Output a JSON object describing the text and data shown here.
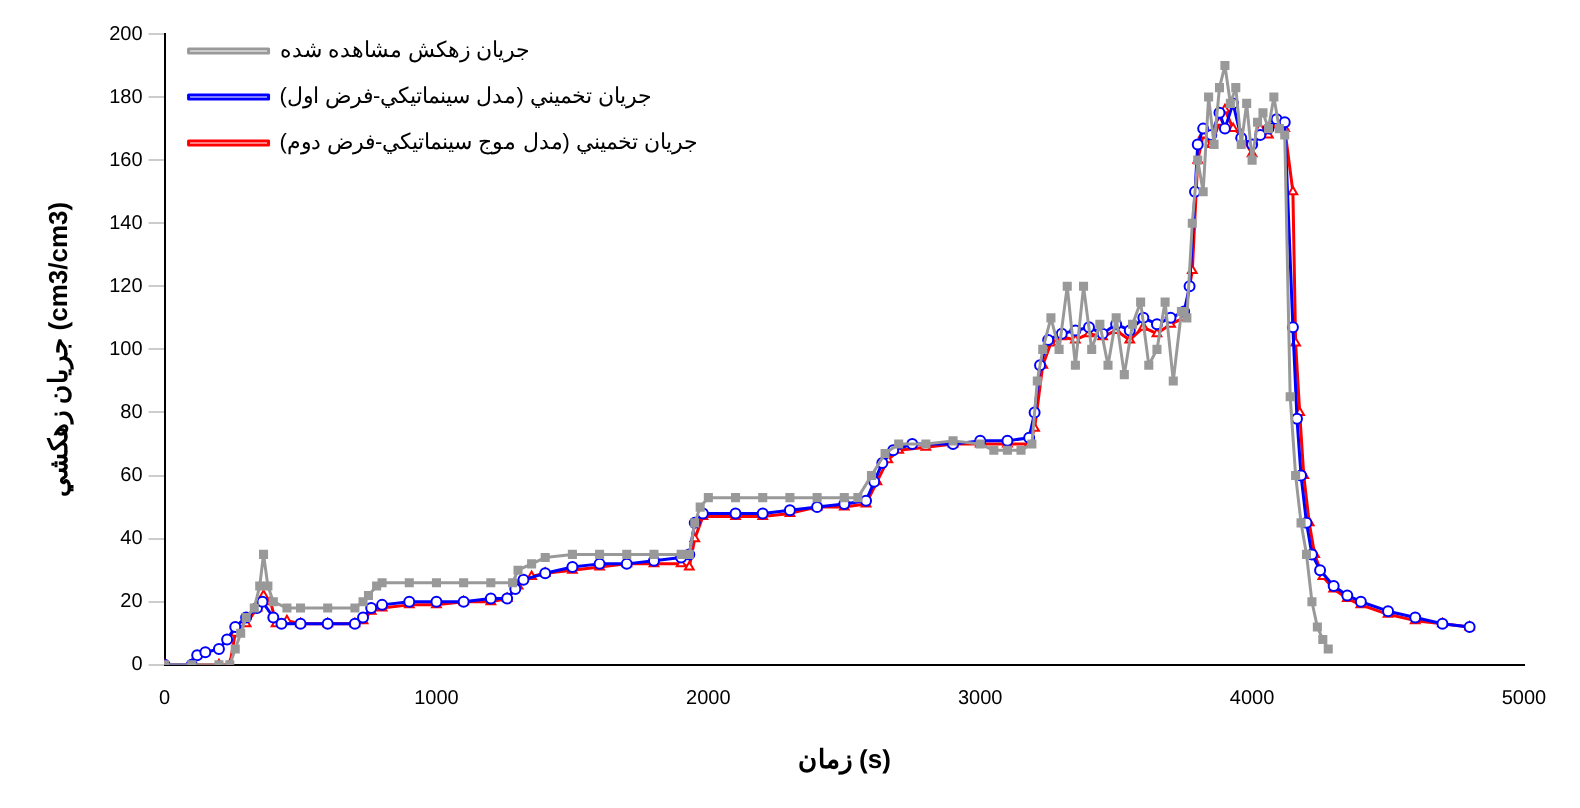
{
  "chart_data": {
    "type": "line",
    "xlabel": "زمان (s)",
    "ylabel": "جريان زهكشي (cm3/cm3)",
    "xlim": [
      0,
      5000
    ],
    "xticks": [
      0,
      1000,
      2000,
      3000,
      4000,
      5000
    ],
    "ylim": [
      0,
      200
    ],
    "yticks": [
      0,
      20,
      40,
      60,
      80,
      100,
      120,
      140,
      160,
      180,
      200
    ],
    "grid": false,
    "legend": "top left",
    "line_style": "solid",
    "series": [
      {
        "name": "جريان زهكش مشاهده شده",
        "color": "#999999",
        "marker": "square",
        "x": [
          0,
          100,
          200,
          240,
          260,
          280,
          300,
          330,
          350,
          364,
          380,
          400,
          450,
          500,
          600,
          700,
          730,
          750,
          780,
          800,
          900,
          1000,
          1100,
          1200,
          1280,
          1300,
          1350,
          1400,
          1500,
          1600,
          1700,
          1800,
          1900,
          1930,
          1950,
          1970,
          2000,
          2100,
          2200,
          2300,
          2400,
          2500,
          2550,
          2600,
          2650,
          2700,
          2800,
          2900,
          3000,
          3050,
          3100,
          3150,
          3190,
          3210,
          3230,
          3260,
          3290,
          3320,
          3350,
          3380,
          3410,
          3440,
          3470,
          3500,
          3530,
          3560,
          3590,
          3620,
          3650,
          3680,
          3710,
          3740,
          3760,
          3780,
          3800,
          3820,
          3840,
          3860,
          3880,
          3900,
          3920,
          3940,
          3960,
          3980,
          4000,
          4020,
          4040,
          4060,
          4080,
          4100,
          4120,
          4140,
          4160,
          4180,
          4200,
          4220,
          4240,
          4260,
          4280
        ],
        "values": [
          0,
          0,
          0,
          0,
          5,
          10,
          15,
          18,
          25,
          35,
          25,
          20,
          18,
          18,
          18,
          18,
          20,
          22,
          25,
          26,
          26,
          26,
          26,
          26,
          26,
          30,
          32,
          34,
          35,
          35,
          35,
          35,
          35,
          35,
          45,
          50,
          53,
          53,
          53,
          53,
          53,
          53,
          53,
          60,
          67,
          70,
          70,
          71,
          70,
          68,
          68,
          68,
          70,
          90,
          100,
          110,
          100,
          120,
          95,
          120,
          100,
          108,
          95,
          110,
          92,
          108,
          115,
          95,
          100,
          115,
          90,
          112,
          110,
          140,
          160,
          150,
          180,
          165,
          183,
          190,
          178,
          183,
          165,
          178,
          160,
          172,
          175,
          170,
          180,
          170,
          168,
          85,
          60,
          45,
          35,
          20,
          12,
          8,
          5
        ]
      },
      {
        "name": "جريان تخميني (مدل سينماتيكي-فرض اول)",
        "color": "#0000ff",
        "marker": "circle",
        "x": [
          0,
          100,
          120,
          150,
          200,
          230,
          260,
          300,
          340,
          360,
          400,
          430,
          500,
          600,
          700,
          730,
          760,
          800,
          900,
          1000,
          1100,
          1200,
          1260,
          1290,
          1320,
          1400,
          1500,
          1600,
          1700,
          1800,
          1900,
          1930,
          1950,
          1980,
          2100,
          2200,
          2300,
          2400,
          2500,
          2580,
          2610,
          2640,
          2680,
          2750,
          2900,
          3000,
          3100,
          3180,
          3200,
          3220,
          3250,
          3300,
          3350,
          3400,
          3450,
          3500,
          3550,
          3600,
          3650,
          3700,
          3750,
          3770,
          3790,
          3800,
          3820,
          3850,
          3880,
          3900,
          3930,
          3960,
          4000,
          4030,
          4060,
          4090,
          4120,
          4150,
          4165,
          4180,
          4200,
          4220,
          4250,
          4300,
          4350,
          4400,
          4500,
          4600,
          4700,
          4800
        ],
        "values": [
          0,
          0,
          3,
          4,
          5,
          8,
          12,
          15,
          18,
          20,
          15,
          13,
          13,
          13,
          13,
          15,
          18,
          19,
          20,
          20,
          20,
          21,
          21,
          24,
          27,
          29,
          31,
          32,
          32,
          33,
          34,
          35,
          45,
          48,
          48,
          48,
          49,
          50,
          51,
          52,
          58,
          64,
          68,
          70,
          70,
          71,
          71,
          72,
          80,
          95,
          103,
          105,
          106,
          107,
          105,
          108,
          106,
          110,
          108,
          110,
          112,
          120,
          150,
          165,
          170,
          168,
          175,
          170,
          178,
          167,
          165,
          168,
          170,
          173,
          172,
          107,
          78,
          60,
          45,
          35,
          30,
          25,
          22,
          20,
          17,
          15,
          13,
          12
        ]
      },
      {
        "name": "جريان تخميني (مدل موج سينماتيكي-فرض دوم)",
        "color": "#ff0000",
        "marker": "triangle",
        "x": [
          0,
          100,
          200,
          240,
          260,
          300,
          340,
          364,
          390,
          410,
          450,
          500,
          600,
          700,
          730,
          760,
          800,
          900,
          1000,
          1100,
          1200,
          1260,
          1300,
          1350,
          1400,
          1500,
          1600,
          1700,
          1800,
          1900,
          1930,
          1950,
          1980,
          2100,
          2200,
          2300,
          2400,
          2500,
          2580,
          2620,
          2660,
          2700,
          2800,
          2900,
          3000,
          3100,
          3180,
          3200,
          3230,
          3260,
          3300,
          3350,
          3400,
          3450,
          3500,
          3550,
          3600,
          3650,
          3700,
          3750,
          3780,
          3800,
          3820,
          3850,
          3880,
          3900,
          3930,
          3960,
          4000,
          4030,
          4060,
          4090,
          4120,
          4150,
          4160,
          4175,
          4190,
          4210,
          4230,
          4260,
          4300,
          4350,
          4400,
          4500,
          4600,
          4700,
          4800
        ],
        "values": [
          0,
          0,
          0,
          0,
          10,
          13,
          18,
          22,
          20,
          13,
          14,
          13,
          13,
          13,
          14,
          17,
          18,
          19,
          19,
          20,
          20,
          21,
          25,
          28,
          29,
          30,
          31,
          32,
          32,
          32,
          31,
          40,
          47,
          47,
          47,
          48,
          50,
          50,
          51,
          58,
          65,
          68,
          69,
          70,
          70,
          70,
          70,
          75,
          95,
          102,
          104,
          103,
          105,
          104,
          106,
          103,
          107,
          105,
          108,
          110,
          125,
          160,
          168,
          165,
          172,
          176,
          170,
          168,
          162,
          170,
          168,
          172,
          170,
          150,
          102,
          80,
          60,
          45,
          35,
          28,
          24,
          21,
          19,
          16,
          14,
          13,
          12
        ]
      }
    ]
  }
}
